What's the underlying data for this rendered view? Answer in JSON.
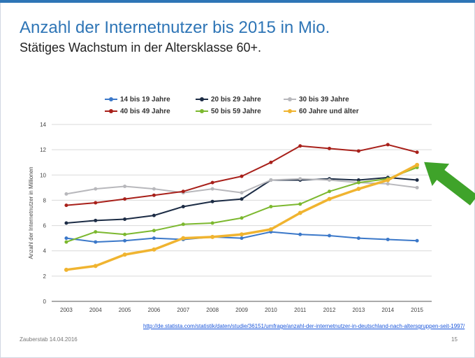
{
  "title": "Anzahl der Internetnutzer bis 2015 in Mio.",
  "subtitle": "Stätiges Wachstum in der Altersklasse 60+.",
  "source_url": "http://de.statista.com/statistik/daten/studie/36151/umfrage/anzahl-der-internetnutzer-in-deutschland-nach-altersgruppen-seit-1997/",
  "footer_left": "Zauberstab 14.04.2016",
  "page_number": "15",
  "chart_data": {
    "type": "line",
    "x": [
      "2003",
      "2004",
      "2005",
      "2006",
      "2007",
      "2008",
      "2009",
      "2010",
      "2011",
      "2012",
      "2013",
      "2014",
      "2015"
    ],
    "ylabel": "Anzahl der Internetnutzer in Millionen",
    "xlabel": "",
    "ylim": [
      0,
      14
    ],
    "yticks": [
      "0",
      "2",
      "4",
      "6",
      "8",
      "10",
      "12",
      "14"
    ],
    "grid": true,
    "legend_position": "top",
    "series": [
      {
        "name": "14 bis 19 Jahre",
        "color": "#3b78c9",
        "values": [
          5.0,
          4.7,
          4.8,
          5.0,
          4.9,
          5.1,
          5.0,
          5.5,
          5.3,
          5.2,
          5.0,
          4.9,
          4.8
        ]
      },
      {
        "name": "20 bis 29 Jahre",
        "color": "#1c2c45",
        "values": [
          6.2,
          6.4,
          6.5,
          6.8,
          7.5,
          7.9,
          8.1,
          9.6,
          9.6,
          9.7,
          9.6,
          9.8,
          9.6
        ]
      },
      {
        "name": "30 bis 39 Jahre",
        "color": "#b8b8bc",
        "values": [
          8.5,
          8.9,
          9.1,
          8.9,
          8.6,
          8.9,
          8.6,
          9.6,
          9.7,
          9.6,
          9.4,
          9.3,
          9.0
        ]
      },
      {
        "name": "40 bis 49 Jahre",
        "color": "#a8201a",
        "values": [
          7.6,
          7.8,
          8.1,
          8.4,
          8.7,
          9.4,
          9.9,
          11.0,
          12.3,
          12.1,
          11.9,
          12.4,
          11.8
        ]
      },
      {
        "name": "50 bis 59 Jahre",
        "color": "#7cb82f",
        "values": [
          4.7,
          5.5,
          5.3,
          5.6,
          6.1,
          6.2,
          6.6,
          7.5,
          7.7,
          8.7,
          9.4,
          9.7,
          10.6
        ]
      },
      {
        "name": "60 Jahre und älter",
        "color": "#f0b430",
        "values": [
          2.5,
          2.8,
          3.7,
          4.1,
          5.0,
          5.1,
          5.3,
          5.7,
          7.0,
          8.1,
          8.9,
          9.6,
          10.8
        ]
      }
    ],
    "annotation": {
      "type": "arrow",
      "color": "#3fa32a",
      "points_to_year": "2015"
    }
  }
}
